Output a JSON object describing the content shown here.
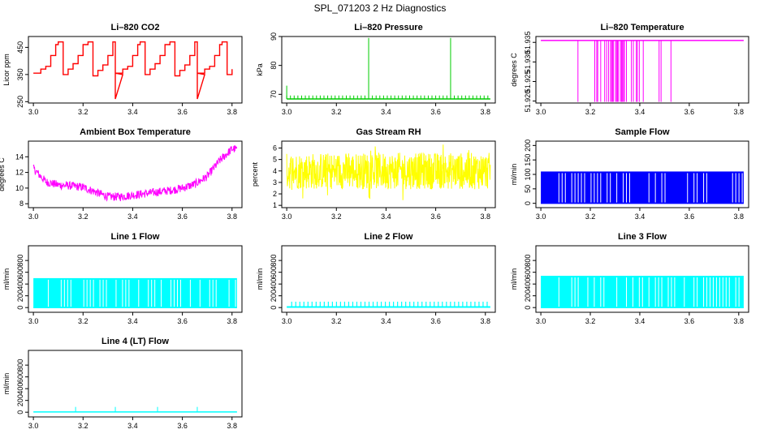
{
  "title": "SPL_071203  2 Hz Diagnostics",
  "colors": {
    "red": "#ff0000",
    "green": "#00cc00",
    "magenta": "#ff00ff",
    "yellow": "#ffff00",
    "blue": "#0000ff",
    "cyan": "#00ffff",
    "axis": "#000000"
  },
  "chart_data": [
    {
      "id": "co2",
      "type": "line",
      "title": "Li–820 CO2",
      "ylabel": "Licor ppm",
      "color": "red",
      "xlim": [
        2.98,
        3.84
      ],
      "xticks": [
        "3.0",
        "3.2",
        "3.4",
        "3.6",
        "3.8"
      ],
      "ylim": [
        245,
        490
      ],
      "yticks": [
        "250",
        "350",
        "450"
      ],
      "yticks_rotated": true,
      "pattern": "staircase",
      "x": [
        3.0,
        3.03,
        3.03,
        3.05,
        3.05,
        3.07,
        3.07,
        3.09,
        3.09,
        3.1,
        3.1,
        3.12,
        3.12,
        3.14,
        3.14,
        3.16,
        3.16,
        3.18,
        3.18,
        3.2,
        3.2,
        3.22,
        3.22,
        3.24,
        3.24,
        3.26,
        3.26,
        3.28,
        3.28,
        3.3,
        3.3,
        3.32,
        3.32,
        3.33,
        3.33,
        3.36
      ],
      "values": [
        355,
        355,
        370,
        370,
        380,
        380,
        420,
        420,
        460,
        460,
        470,
        470,
        350,
        350,
        370,
        370,
        390,
        390,
        420,
        420,
        460,
        460,
        470,
        470,
        345,
        345,
        365,
        365,
        385,
        385,
        420,
        420,
        470,
        470,
        260,
        350
      ]
    },
    {
      "id": "pressure",
      "type": "line",
      "title": "Li–820 Pressure",
      "ylabel": "kPa",
      "color": "green",
      "xlim": [
        2.98,
        3.84
      ],
      "xticks": [
        "3.0",
        "3.2",
        "3.4",
        "3.6",
        "3.8"
      ],
      "ylim": [
        67,
        90
      ],
      "yticks": [
        "70",
        "80",
        "90"
      ],
      "yticks_rotated": true,
      "pattern": "baseline-spikes",
      "baseline": 68.4,
      "spikes": [
        [
          3.0,
          73
        ],
        [
          3.33,
          89.5
        ],
        [
          3.66,
          89.5
        ]
      ]
    },
    {
      "id": "licor-temp",
      "type": "line",
      "title": "Li–820 Temperature",
      "ylabel": "degrees C",
      "color": "magenta",
      "xlim": [
        2.98,
        3.84
      ],
      "xticks": [
        "3.0",
        "3.2",
        "3.4",
        "3.6",
        "3.8"
      ],
      "ylim": [
        51.9195,
        51.9365
      ],
      "yticks": [
        "51.920",
        "51.925",
        "51.930",
        "51.935"
      ],
      "yticks_rotated": true,
      "pattern": "top-with-drops",
      "baseline": 51.9355,
      "drop_to": 51.9198
    },
    {
      "id": "box-temp",
      "type": "line",
      "title": "Ambient Box Temperature",
      "ylabel": "degrees C",
      "color": "magenta",
      "xlim": [
        2.98,
        3.84
      ],
      "xticks": [
        "3.0",
        "3.2",
        "3.4",
        "3.6",
        "3.8"
      ],
      "ylim": [
        7.5,
        16
      ],
      "yticks": [
        "8",
        "10",
        "12",
        "14"
      ],
      "yticks_rotated": false,
      "pattern": "noisy-curve",
      "x": [
        3.0,
        3.05,
        3.1,
        3.15,
        3.2,
        3.25,
        3.3,
        3.35,
        3.4,
        3.45,
        3.5,
        3.55,
        3.6,
        3.65,
        3.7,
        3.75,
        3.8,
        3.82
      ],
      "values": [
        12.5,
        10.8,
        10.4,
        10.3,
        10.1,
        9.5,
        8.9,
        8.9,
        9.1,
        9.3,
        9.5,
        9.7,
        10.0,
        10.5,
        11.5,
        13.5,
        15.0,
        15.0
      ],
      "noise": 0.9
    },
    {
      "id": "rh",
      "type": "line",
      "title": "Gas Stream RH",
      "ylabel": "percent",
      "color": "yellow",
      "xlim": [
        2.98,
        3.84
      ],
      "xticks": [
        "3.0",
        "3.2",
        "3.4",
        "3.6",
        "3.8"
      ],
      "ylim": [
        0.8,
        6.6
      ],
      "yticks": [
        "1",
        "2",
        "3",
        "4",
        "5",
        "6"
      ],
      "yticks_rotated": false,
      "pattern": "dense-band",
      "center": 4.0,
      "spread": 1.6
    },
    {
      "id": "sample-flow",
      "type": "line",
      "title": "Sample Flow",
      "ylabel": "ml/min",
      "color": "blue",
      "xlim": [
        2.98,
        3.84
      ],
      "xticks": [
        "3.0",
        "3.2",
        "3.4",
        "3.6",
        "3.8"
      ],
      "ylim": [
        -15,
        215
      ],
      "yticks": [
        "0",
        "50",
        "100",
        "150",
        "200"
      ],
      "yticks_rotated": true,
      "pattern": "filled-gaps",
      "level": 110
    },
    {
      "id": "line1",
      "type": "line",
      "title": "Line 1 Flow",
      "ylabel": "ml/min",
      "color": "cyan",
      "xlim": [
        2.98,
        3.84
      ],
      "xticks": [
        "3.0",
        "3.2",
        "3.4",
        "3.6",
        "3.8"
      ],
      "ylim": [
        -80,
        1050
      ],
      "yticks": [
        "0",
        "200",
        "400",
        "600",
        "800"
      ],
      "yticks_rotated": true,
      "pattern": "filled-gaps",
      "level": 500
    },
    {
      "id": "line2",
      "type": "line",
      "title": "Line 2 Flow",
      "ylabel": "ml/min",
      "color": "cyan",
      "xlim": [
        2.98,
        3.84
      ],
      "xticks": [
        "3.0",
        "3.2",
        "3.4",
        "3.6",
        "3.8"
      ],
      "ylim": [
        -80,
        1050
      ],
      "yticks": [
        "0",
        "200",
        "400",
        "600",
        "800"
      ],
      "yticks_rotated": true,
      "pattern": "baseline-comb",
      "baseline": 10,
      "tooth": 100
    },
    {
      "id": "line3",
      "type": "line",
      "title": "Line 3 Flow",
      "ylabel": "ml/min",
      "color": "cyan",
      "xlim": [
        2.98,
        3.84
      ],
      "xticks": [
        "3.0",
        "3.2",
        "3.4",
        "3.6",
        "3.8"
      ],
      "ylim": [
        -80,
        1050
      ],
      "yticks": [
        "0",
        "200",
        "400",
        "600",
        "800"
      ],
      "yticks_rotated": true,
      "pattern": "filled-gaps",
      "level": 540
    },
    {
      "id": "line4",
      "type": "line",
      "title": "Line 4 (LT) Flow",
      "ylabel": "ml/min",
      "color": "cyan",
      "xlim": [
        2.98,
        3.84
      ],
      "xticks": [
        "3.0",
        "3.2",
        "3.4",
        "3.6",
        "3.8"
      ],
      "ylim": [
        -80,
        1050
      ],
      "yticks": [
        "0",
        "200",
        "400",
        "600",
        "800"
      ],
      "yticks_rotated": true,
      "pattern": "baseline-spikes",
      "baseline": 5,
      "spikes": [
        [
          3.17,
          90
        ],
        [
          3.33,
          90
        ],
        [
          3.5,
          90
        ],
        [
          3.66,
          90
        ]
      ]
    }
  ]
}
